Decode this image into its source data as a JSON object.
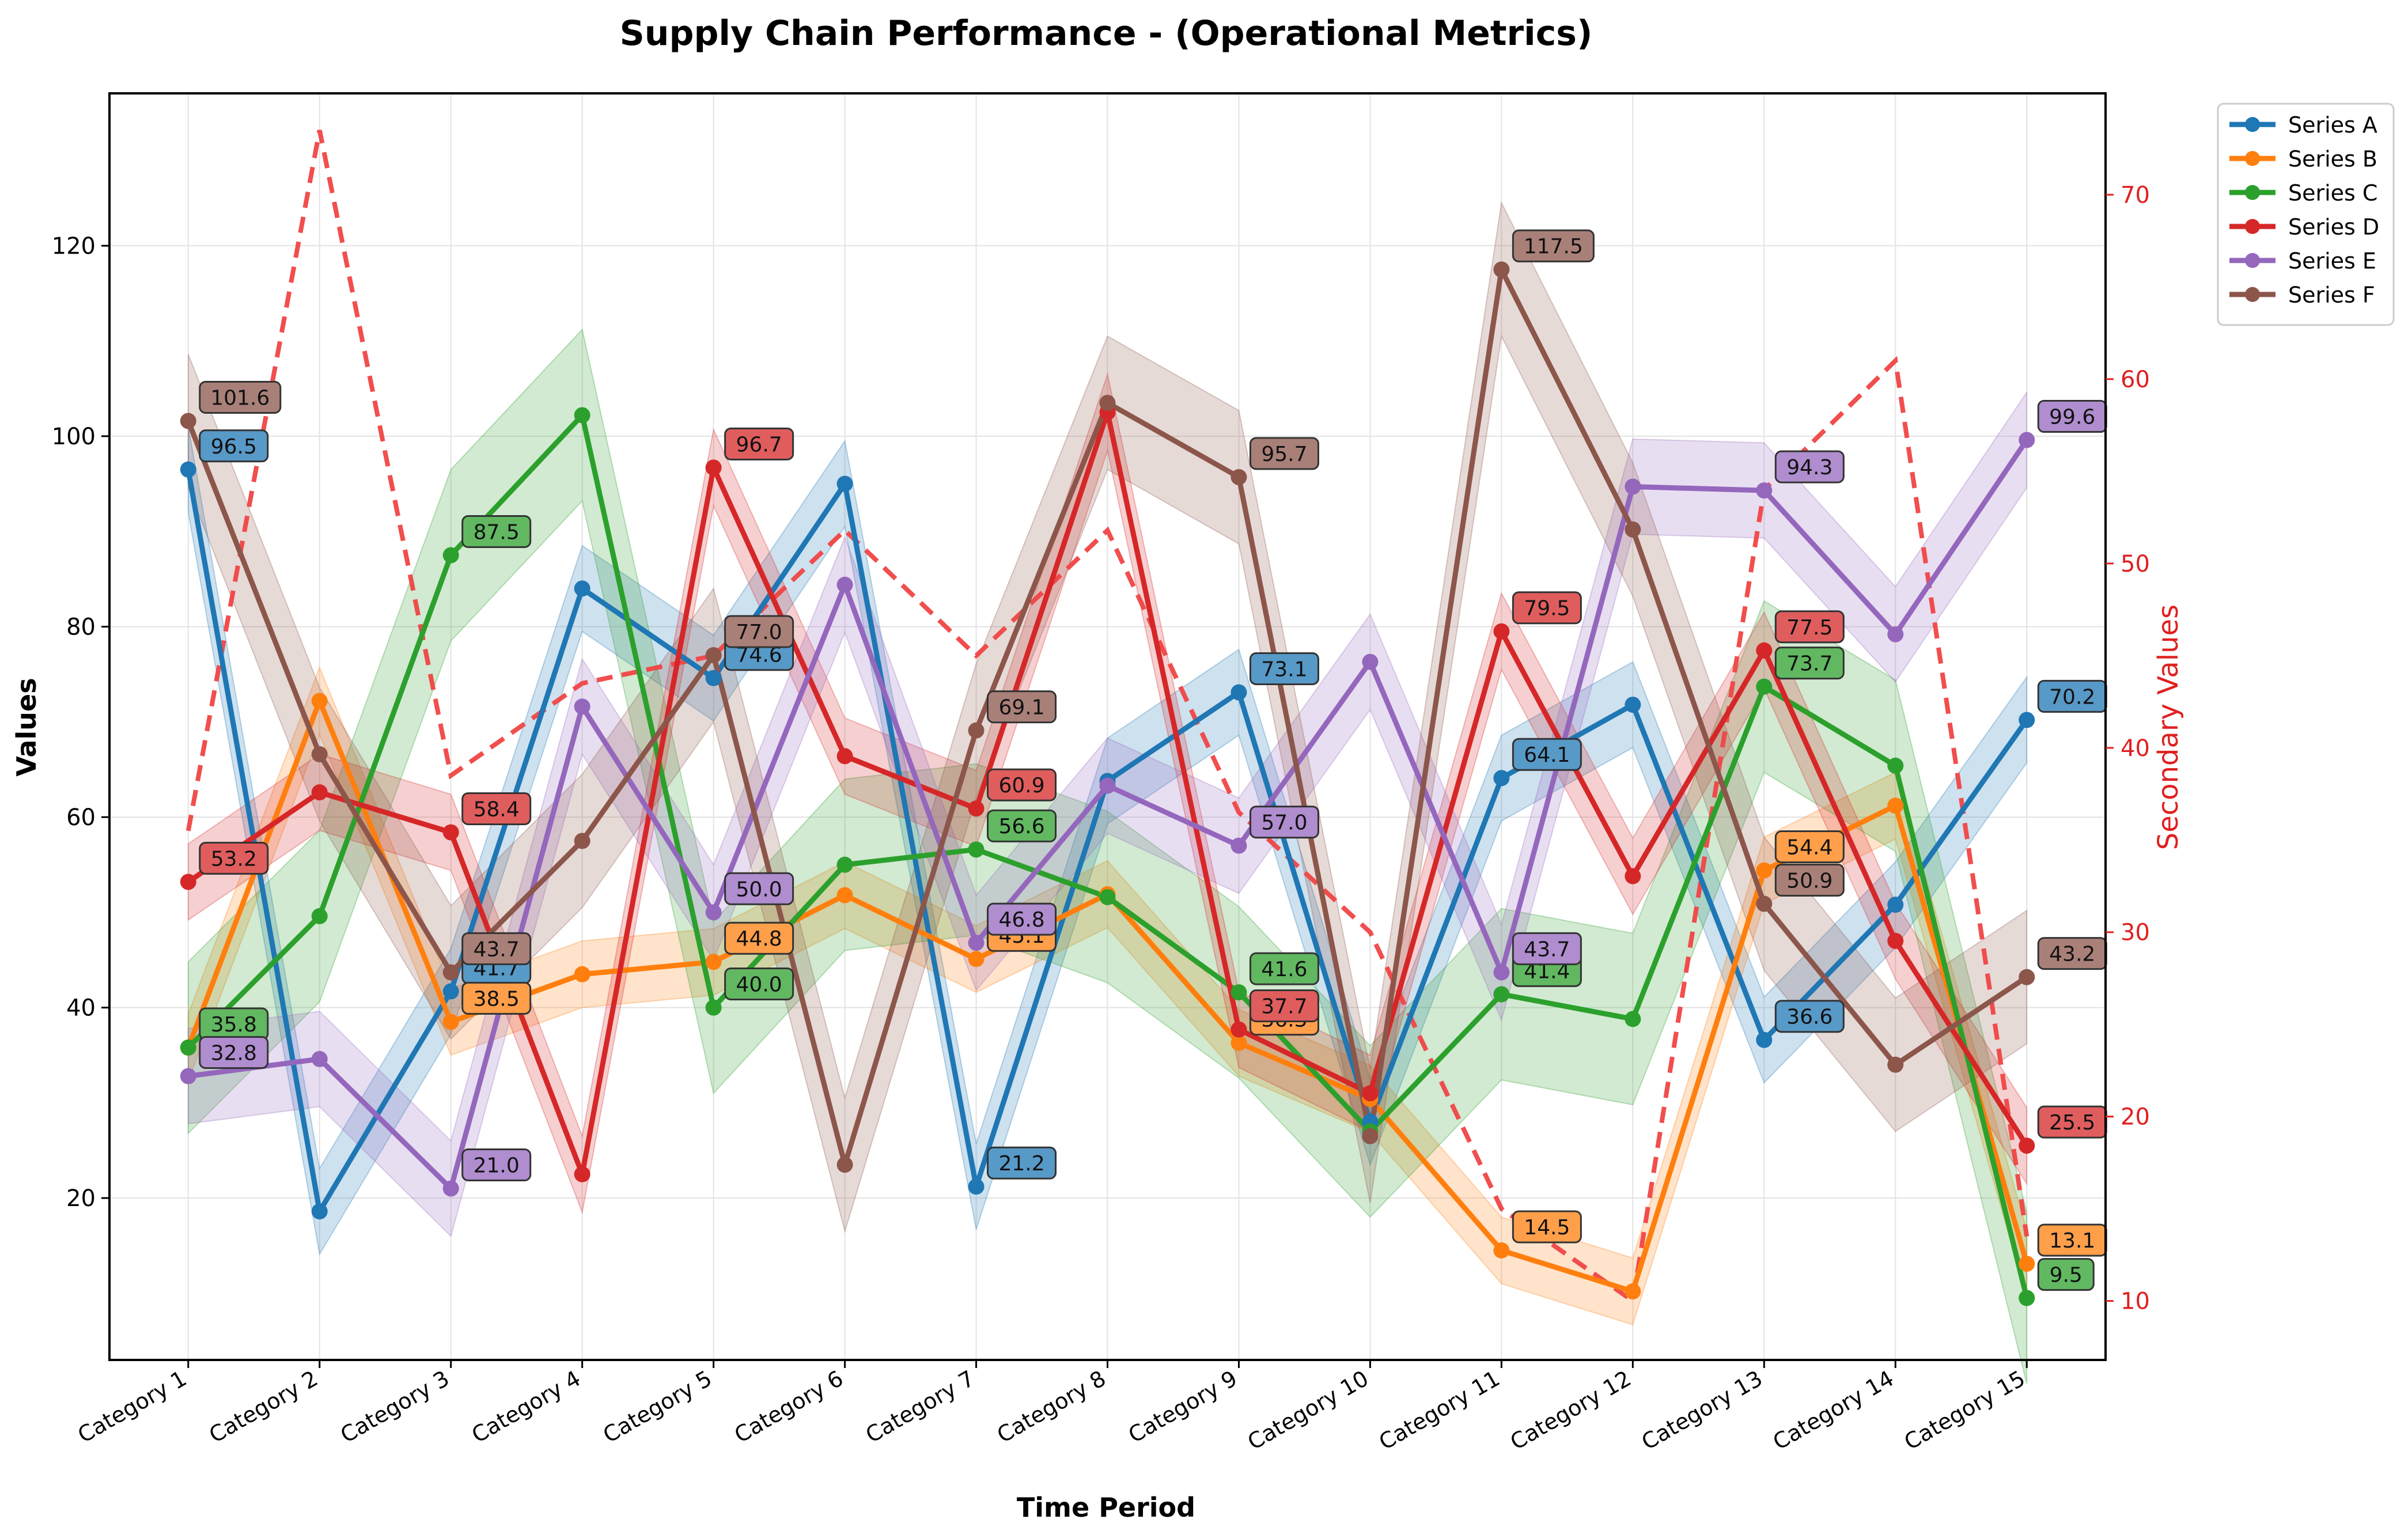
{
  "chart_data": {
    "type": "line",
    "title": "Supply Chain Performance - (Operational Metrics)",
    "xlabel": "Time Period",
    "ylabel": "Values",
    "y2label": "Secondary Values",
    "categories": [
      "Category 1",
      "Category 2",
      "Category 3",
      "Category 4",
      "Category 5",
      "Category 6",
      "Category 7",
      "Category 8",
      "Category 9",
      "Category 10",
      "Category 11",
      "Category 12",
      "Category 13",
      "Category 14",
      "Category 15"
    ],
    "ylim": [
      3,
      136
    ],
    "y2lim": [
      6.8,
      75.5
    ],
    "yticks": [
      20,
      40,
      60,
      80,
      100,
      120
    ],
    "y2ticks": [
      10,
      20,
      30,
      40,
      50,
      60,
      70
    ],
    "grid": true,
    "legend_position": "top-right",
    "series": [
      {
        "name": "Series A",
        "color": "#1f77b4",
        "values": [
          96.5,
          18.6,
          41.7,
          84.0,
          74.6,
          95.0,
          21.2,
          63.8,
          73.1,
          28.0,
          64.1,
          71.8,
          36.6,
          50.8,
          70.2
        ],
        "band": 4.5,
        "labeled": [
          0,
          2,
          4,
          6,
          8,
          10,
          12,
          14
        ]
      },
      {
        "name": "Series B",
        "color": "#ff7f0e",
        "values": [
          35.8,
          72.2,
          38.5,
          43.5,
          44.8,
          51.8,
          45.1,
          51.9,
          36.3,
          30.4,
          14.5,
          10.2,
          54.4,
          61.2,
          13.1
        ],
        "band": 3.5,
        "labeled": [
          2,
          4,
          6,
          8,
          10,
          12,
          14
        ]
      },
      {
        "name": "Series C",
        "color": "#2ca02c",
        "values": [
          35.8,
          49.6,
          87.5,
          102.2,
          40.0,
          55.0,
          56.6,
          51.6,
          41.6,
          27.0,
          41.4,
          38.8,
          73.7,
          65.4,
          9.5
        ],
        "band": 9.0,
        "labeled": [
          0,
          2,
          4,
          6,
          8,
          10,
          12,
          14
        ]
      },
      {
        "name": "Series D",
        "color": "#d62728",
        "values": [
          53.2,
          62.6,
          58.4,
          22.5,
          96.7,
          66.4,
          60.9,
          102.5,
          37.7,
          31.0,
          79.5,
          53.8,
          77.5,
          47.0,
          25.5
        ],
        "band": 4.0,
        "labeled": [
          0,
          2,
          4,
          6,
          8,
          10,
          12,
          14
        ]
      },
      {
        "name": "Series E",
        "color": "#9467bd",
        "values": [
          32.8,
          34.6,
          21.0,
          71.6,
          50.0,
          84.4,
          46.8,
          63.3,
          57.0,
          76.3,
          43.7,
          94.7,
          94.3,
          79.2,
          99.6
        ],
        "band": 5.0,
        "labeled": [
          0,
          2,
          4,
          6,
          8,
          10,
          12,
          14
        ]
      },
      {
        "name": "Series F",
        "color": "#8c564b",
        "values": [
          101.6,
          66.6,
          43.7,
          57.5,
          77.0,
          23.5,
          69.1,
          103.5,
          95.7,
          26.5,
          117.5,
          90.2,
          50.9,
          34.0,
          43.2
        ],
        "band": 7.0,
        "labeled": [
          0,
          2,
          4,
          6,
          8,
          10,
          12,
          14
        ]
      }
    ],
    "secondary_series": {
      "color": "#f04545",
      "values": [
        35.5,
        73.5,
        38.5,
        43.5,
        45.0,
        51.8,
        45.0,
        51.8,
        36.5,
        30.0,
        15.0,
        10.0,
        54.0,
        61.0,
        13.5
      ]
    },
    "point_labels": {
      "Series A": [
        "96.5",
        "41.7",
        "74.6",
        "21.2",
        "73.1",
        "64.1",
        "36.6",
        "70.2"
      ],
      "Series B": [
        "38.5",
        "44.8",
        "45.1",
        "36.3",
        "14.5",
        "54.4",
        "13.1"
      ],
      "Series C": [
        "35.8",
        "87.5",
        "40.0",
        "56.6",
        "41.6",
        "41.4",
        "73.7",
        "9.5"
      ],
      "Series D": [
        "53.2",
        "58.4",
        "96.7",
        "60.9",
        "37.7",
        "79.5",
        "77.5",
        "25.5"
      ],
      "Series E": [
        "32.8",
        "21.0",
        "50.0",
        "46.8",
        "57.0",
        "43.7",
        "94.3",
        "99.6"
      ],
      "Series F": [
        "101.6",
        "43.7",
        "77.0",
        "69.1",
        "95.7",
        "117.5",
        "50.9",
        "43.2"
      ]
    }
  }
}
